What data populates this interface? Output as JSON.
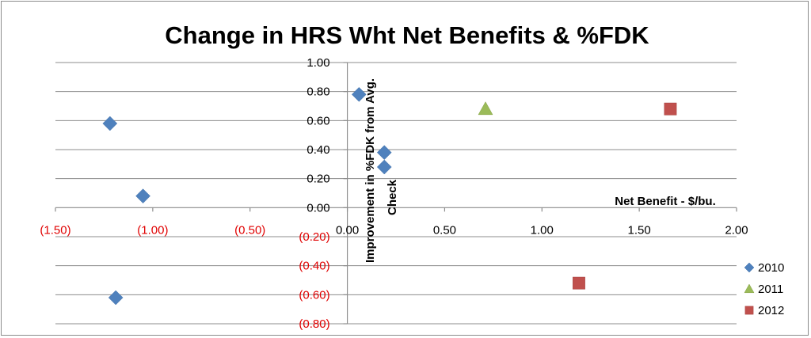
{
  "chart_data": {
    "type": "scatter",
    "title": "Change in HRS Wht Net Benefits & %FDK",
    "xlabel": "Net Benefit - $/bu.",
    "ylabel": "Improvement in %FDK from Avg. Check",
    "xlim": [
      -1.5,
      2.0
    ],
    "ylim": [
      -0.8,
      1.0
    ],
    "x_ticks": [
      {
        "value": -1.5,
        "label": "(1.50)",
        "negative": true
      },
      {
        "value": -1.0,
        "label": "(1.00)",
        "negative": true
      },
      {
        "value": -0.5,
        "label": "(0.50)",
        "negative": true
      },
      {
        "value": 0.0,
        "label": "0.00",
        "negative": false
      },
      {
        "value": 0.5,
        "label": "0.50",
        "negative": false
      },
      {
        "value": 1.0,
        "label": "1.00",
        "negative": false
      },
      {
        "value": 1.5,
        "label": "1.50",
        "negative": false
      },
      {
        "value": 2.0,
        "label": "2.00",
        "negative": false
      }
    ],
    "y_ticks": [
      {
        "value": 1.0,
        "label": "1.00",
        "negative": false
      },
      {
        "value": 0.8,
        "label": "0.80",
        "negative": false
      },
      {
        "value": 0.6,
        "label": "0.60",
        "negative": false
      },
      {
        "value": 0.4,
        "label": "0.40",
        "negative": false
      },
      {
        "value": 0.2,
        "label": "0.20",
        "negative": false
      },
      {
        "value": 0.0,
        "label": "0.00",
        "negative": false
      },
      {
        "value": -0.2,
        "label": "(0.20)",
        "negative": true
      },
      {
        "value": -0.4,
        "label": "(0.40)",
        "negative": true
      },
      {
        "value": -0.6,
        "label": "(0.60)",
        "negative": true
      },
      {
        "value": -0.8,
        "label": "(0.80)",
        "negative": true
      }
    ],
    "grid": "horizontal",
    "legend_position": "right",
    "series": [
      {
        "name": "2010",
        "marker": "diamond",
        "color": "#4f81bd",
        "points": [
          {
            "x": -1.22,
            "y": 0.58
          },
          {
            "x": -1.05,
            "y": 0.08
          },
          {
            "x": -1.19,
            "y": -0.62
          },
          {
            "x": 0.06,
            "y": 0.78
          },
          {
            "x": 0.19,
            "y": 0.38
          },
          {
            "x": 0.19,
            "y": 0.28
          }
        ]
      },
      {
        "name": "2011",
        "marker": "triangle",
        "color": "#9bbb59",
        "points": [
          {
            "x": 0.71,
            "y": 0.68
          }
        ]
      },
      {
        "name": "2012",
        "marker": "square",
        "color": "#c0504d",
        "points": [
          {
            "x": 1.66,
            "y": 0.68
          },
          {
            "x": 1.19,
            "y": -0.52
          }
        ]
      }
    ]
  }
}
